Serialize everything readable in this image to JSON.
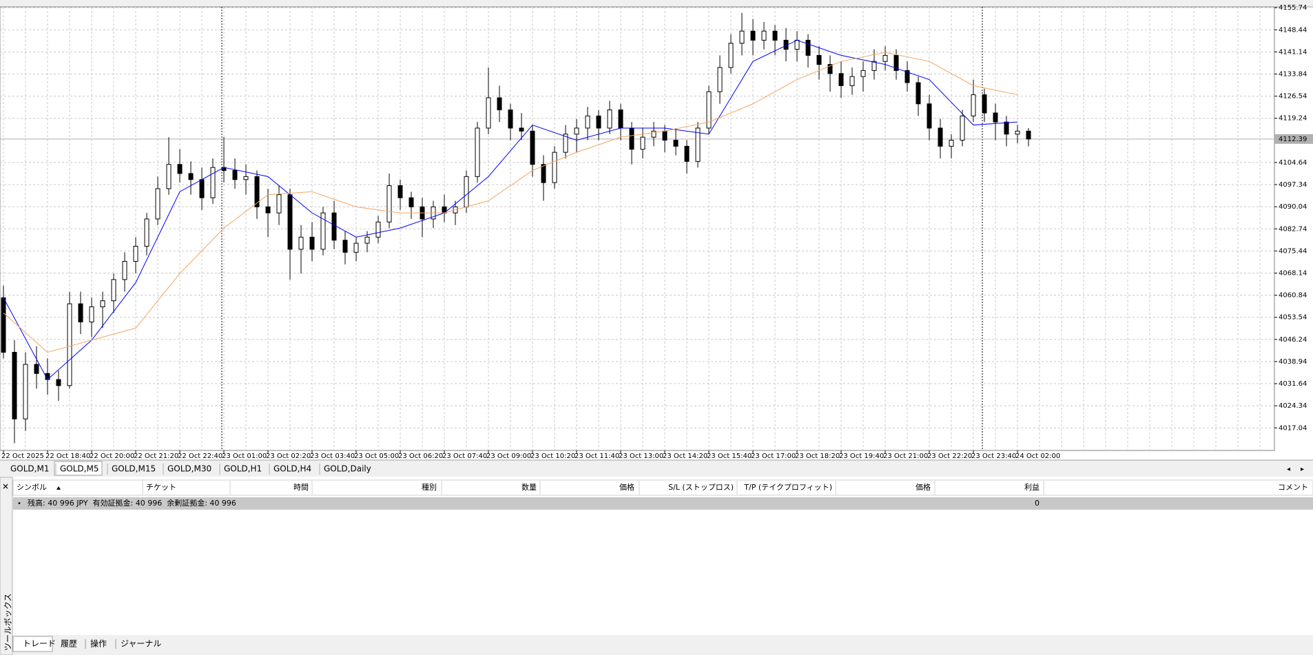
{
  "chart_data": {
    "type": "candlestick",
    "ylim": [
      4009.6,
      4156.0
    ],
    "yticks": [
      4155.74,
      4148.44,
      4141.14,
      4133.84,
      4126.54,
      4119.24,
      4104.64,
      4097.34,
      4090.04,
      4082.74,
      4075.44,
      4068.14,
      4060.84,
      4053.54,
      4046.24,
      4038.94,
      4031.64,
      4024.34,
      4017.04
    ],
    "current_price": 4112.39,
    "x_labels": [
      "22 Oct 2025",
      "22 Oct 18:40",
      "22 Oct 20:00",
      "22 Oct 21:20",
      "22 Oct 22:40",
      "23 Oct 01:00",
      "23 Oct 02:20",
      "23 Oct 03:40",
      "23 Oct 05:00",
      "23 Oct 06:20",
      "23 Oct 07:40",
      "23 Oct 09:00",
      "23 Oct 10:20",
      "23 Oct 11:40",
      "23 Oct 13:00",
      "23 Oct 14:20",
      "23 Oct 15:40",
      "23 Oct 17:00",
      "23 Oct 18:20",
      "23 Oct 19:40",
      "23 Oct 21:00",
      "23 Oct 22:20",
      "23 Oct 23:40",
      "24 Oct 02:00"
    ],
    "grid": true,
    "candles": [
      [
        4060,
        4064,
        4040,
        4042
      ],
      [
        4042,
        4046,
        4012,
        4020
      ],
      [
        4020,
        4042,
        4016,
        4038
      ],
      [
        4038,
        4044,
        4030,
        4035
      ],
      [
        4035,
        4040,
        4028,
        4033
      ],
      [
        4033,
        4036,
        4026,
        4031
      ],
      [
        4031,
        4062,
        4030,
        4058
      ],
      [
        4058,
        4062,
        4048,
        4052
      ],
      [
        4052,
        4060,
        4047,
        4057
      ],
      [
        4057,
        4062,
        4050,
        4059
      ],
      [
        4059,
        4068,
        4055,
        4066
      ],
      [
        4066,
        4075,
        4062,
        4072
      ],
      [
        4072,
        4080,
        4068,
        4077
      ],
      [
        4077,
        4088,
        4074,
        4086
      ],
      [
        4086,
        4100,
        4084,
        4096
      ],
      [
        4096,
        4113,
        4094,
        4104
      ],
      [
        4104,
        4109,
        4098,
        4101
      ],
      [
        4101,
        4105,
        4094,
        4099
      ],
      [
        4099,
        4103,
        4089,
        4093
      ],
      [
        4093,
        4106,
        4091,
        4103
      ],
      [
        4103,
        4113,
        4098,
        4102
      ],
      [
        4102,
        4106,
        4096,
        4099
      ],
      [
        4099,
        4104,
        4094,
        4100
      ],
      [
        4100,
        4102,
        4086,
        4090
      ],
      [
        4090,
        4096,
        4080,
        4088
      ],
      [
        4088,
        4097,
        4084,
        4094
      ],
      [
        4094,
        4096,
        4066,
        4076
      ],
      [
        4076,
        4084,
        4068,
        4080
      ],
      [
        4080,
        4085,
        4072,
        4076
      ],
      [
        4076,
        4090,
        4074,
        4088
      ],
      [
        4088,
        4092,
        4076,
        4079
      ],
      [
        4079,
        4082,
        4071,
        4075
      ],
      [
        4075,
        4080,
        4072,
        4078
      ],
      [
        4078,
        4082,
        4075,
        4080
      ],
      [
        4080,
        4087,
        4078,
        4085
      ],
      [
        4085,
        4101,
        4083,
        4097
      ],
      [
        4097,
        4099,
        4089,
        4093
      ],
      [
        4093,
        4095,
        4086,
        4090
      ],
      [
        4090,
        4093,
        4080,
        4086
      ],
      [
        4086,
        4092,
        4083,
        4090
      ],
      [
        4090,
        4094,
        4085,
        4088
      ],
      [
        4088,
        4092,
        4084,
        4090
      ],
      [
        4090,
        4102,
        4088,
        4100
      ],
      [
        4100,
        4118,
        4098,
        4116
      ],
      [
        4116,
        4136,
        4114,
        4126
      ],
      [
        4126,
        4130,
        4118,
        4122
      ],
      [
        4122,
        4124,
        4112,
        4116
      ],
      [
        4116,
        4121,
        4112,
        4115
      ],
      [
        4115,
        4117,
        4100,
        4104
      ],
      [
        4104,
        4107,
        4092,
        4098
      ],
      [
        4098,
        4110,
        4096,
        4108
      ],
      [
        4108,
        4117,
        4106,
        4114
      ],
      [
        4114,
        4119,
        4108,
        4116
      ],
      [
        4116,
        4123,
        4112,
        4120
      ],
      [
        4120,
        4122,
        4112,
        4116
      ],
      [
        4116,
        4125,
        4114,
        4122
      ],
      [
        4122,
        4124,
        4112,
        4116
      ],
      [
        4116,
        4118,
        4104,
        4109
      ],
      [
        4109,
        4116,
        4106,
        4113
      ],
      [
        4113,
        4118,
        4110,
        4115
      ],
      [
        4115,
        4117,
        4108,
        4112
      ],
      [
        4112,
        4116,
        4107,
        4110
      ],
      [
        4110,
        4112,
        4101,
        4105
      ],
      [
        4105,
        4118,
        4103,
        4116
      ],
      [
        4116,
        4130,
        4114,
        4128
      ],
      [
        4128,
        4140,
        4124,
        4136
      ],
      [
        4136,
        4147,
        4134,
        4144
      ],
      [
        4144,
        4154,
        4140,
        4148
      ],
      [
        4148,
        4152,
        4140,
        4145
      ],
      [
        4145,
        4151,
        4142,
        4148
      ],
      [
        4148,
        4150,
        4140,
        4145
      ],
      [
        4145,
        4149,
        4138,
        4142
      ],
      [
        4142,
        4148,
        4138,
        4145
      ],
      [
        4145,
        4147,
        4136,
        4140
      ],
      [
        4140,
        4143,
        4132,
        4137
      ],
      [
        4137,
        4140,
        4128,
        4134
      ],
      [
        4134,
        4138,
        4126,
        4130
      ],
      [
        4130,
        4136,
        4127,
        4133
      ],
      [
        4133,
        4138,
        4128,
        4135
      ],
      [
        4135,
        4142,
        4132,
        4138
      ],
      [
        4138,
        4143,
        4135,
        4140
      ],
      [
        4140,
        4142,
        4132,
        4135
      ],
      [
        4135,
        4138,
        4128,
        4131
      ],
      [
        4131,
        4133,
        4120,
        4124
      ],
      [
        4124,
        4127,
        4112,
        4116
      ],
      [
        4116,
        4119,
        4106,
        4110
      ],
      [
        4110,
        4114,
        4106,
        4112
      ],
      [
        4112,
        4122,
        4110,
        4120
      ],
      [
        4120,
        4132,
        4118,
        4127
      ],
      [
        4127,
        4129,
        4118,
        4121
      ],
      [
        4121,
        4124,
        4112,
        4118
      ],
      [
        4118,
        4120,
        4110,
        4114
      ],
      [
        4114,
        4117,
        4111,
        4115
      ],
      [
        4115,
        4116,
        4110,
        4112.39
      ]
    ],
    "series": [
      {
        "color": "#0000ff",
        "values": [
          4060,
          4033,
          4046,
          4065,
          4095,
          4103,
          4100,
          4088,
          4080,
          4083,
          4088,
          4100,
          4117,
          4112,
          4116,
          4116,
          4114,
          4138,
          4145,
          4140,
          4137,
          4132,
          4117,
          4118
        ]
      },
      {
        "color": "#f4a460",
        "values": [
          4055,
          4042,
          4046,
          4050,
          4068,
          4083,
          4094,
          4095,
          4090,
          4088,
          4088,
          4092,
          4102,
          4108,
          4113,
          4115,
          4118,
          4124,
          4132,
          4138,
          4141,
          4138,
          4130,
          4127
        ]
      }
    ]
  },
  "chart_tabs": [
    "GOLD,M1",
    "GOLD,M5",
    "GOLD,M15",
    "GOLD,M30",
    "GOLD,H1",
    "GOLD,H4",
    "GOLD,Daily"
  ],
  "terminal": {
    "columns": [
      "シンボル",
      "チケット",
      "時間",
      "種別",
      "数量",
      "価格",
      "S/L (ストップロス)",
      "T/P (テイクプロフィット)",
      "価格",
      "利益",
      "コメント"
    ],
    "balance": "残高: 40 996 JPY  有効証拠金: 40 996  余剰証拠金: 40 996",
    "profit": "0",
    "tabs": [
      "トレード",
      "履歴",
      "操作",
      "ジャーナル"
    ],
    "side_label": "ツールボックス"
  }
}
